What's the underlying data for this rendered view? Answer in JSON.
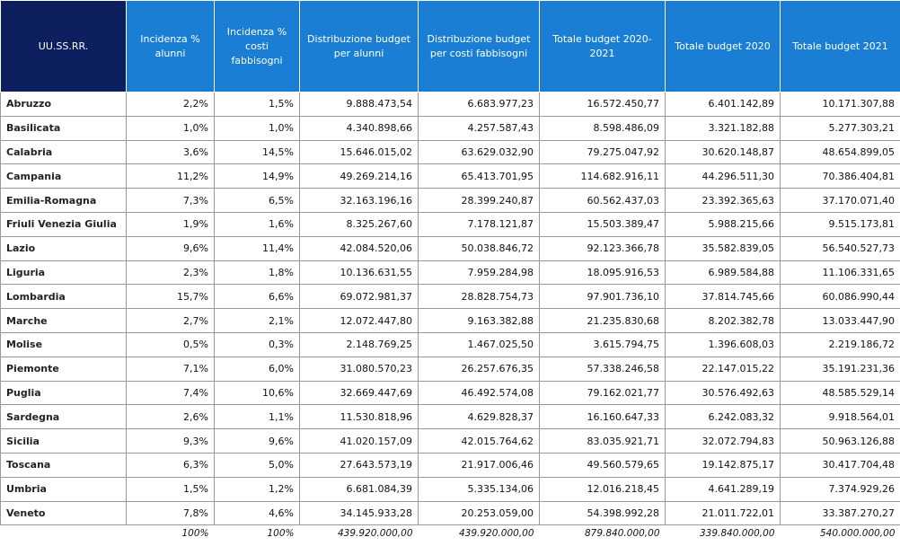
{
  "table": {
    "header": [
      "UU.SS.RR.",
      "Incidenza % alunni",
      "Incidenza % costi fabbisogni",
      "Distribuzione budget per alunni",
      "Distribuzione budget per costi fabbisogni",
      "Totale budget 2020-2021",
      "Totale budget 2020",
      "Totale budget 2021"
    ],
    "rows": [
      [
        "Abruzzo",
        "2,2%",
        "1,5%",
        "9.888.473,54",
        "6.683.977,23",
        "16.572.450,77",
        "6.401.142,89",
        "10.171.307,88"
      ],
      [
        "Basilicata",
        "1,0%",
        "1,0%",
        "4.340.898,66",
        "4.257.587,43",
        "8.598.486,09",
        "3.321.182,88",
        "5.277.303,21"
      ],
      [
        "Calabria",
        "3,6%",
        "14,5%",
        "15.646.015,02",
        "63.629.032,90",
        "79.275.047,92",
        "30.620.148,87",
        "48.654.899,05"
      ],
      [
        "Campania",
        "11,2%",
        "14,9%",
        "49.269.214,16",
        "65.413.701,95",
        "114.682.916,11",
        "44.296.511,30",
        "70.386.404,81"
      ],
      [
        "Emilia-Romagna",
        "7,3%",
        "6,5%",
        "32.163.196,16",
        "28.399.240,87",
        "60.562.437,03",
        "23.392.365,63",
        "37.170.071,40"
      ],
      [
        "Friuli Venezia Giulia",
        "1,9%",
        "1,6%",
        "8.325.267,60",
        "7.178.121,87",
        "15.503.389,47",
        "5.988.215,66",
        "9.515.173,81"
      ],
      [
        "Lazio",
        "9,6%",
        "11,4%",
        "42.084.520,06",
        "50.038.846,72",
        "92.123.366,78",
        "35.582.839,05",
        "56.540.527,73"
      ],
      [
        "Liguria",
        "2,3%",
        "1,8%",
        "10.136.631,55",
        "7.959.284,98",
        "18.095.916,53",
        "6.989.584,88",
        "11.106.331,65"
      ],
      [
        "Lombardia",
        "15,7%",
        "6,6%",
        "69.072.981,37",
        "28.828.754,73",
        "97.901.736,10",
        "37.814.745,66",
        "60.086.990,44"
      ],
      [
        "Marche",
        "2,7%",
        "2,1%",
        "12.072.447,80",
        "9.163.382,88",
        "21.235.830,68",
        "8.202.382,78",
        "13.033.447,90"
      ],
      [
        "Molise",
        "0,5%",
        "0,3%",
        "2.148.769,25",
        "1.467.025,50",
        "3.615.794,75",
        "1.396.608,03",
        "2.219.186,72"
      ],
      [
        "Piemonte",
        "7,1%",
        "6,0%",
        "31.080.570,23",
        "26.257.676,35",
        "57.338.246,58",
        "22.147.015,22",
        "35.191.231,36"
      ],
      [
        "Puglia",
        "7,4%",
        "10,6%",
        "32.669.447,69",
        "46.492.574,08",
        "79.162.021,77",
        "30.576.492,63",
        "48.585.529,14"
      ],
      [
        "Sardegna",
        "2,6%",
        "1,1%",
        "11.530.818,96",
        "4.629.828,37",
        "16.160.647,33",
        "6.242.083,32",
        "9.918.564,01"
      ],
      [
        "Sicilia",
        "9,3%",
        "9,6%",
        "41.020.157,09",
        "42.015.764,62",
        "83.035.921,71",
        "32.072.794,83",
        "50.963.126,88"
      ],
      [
        "Toscana",
        "6,3%",
        "5,0%",
        "27.643.573,19",
        "21.917.006,46",
        "49.560.579,65",
        "19.142.875,17",
        "30.417.704,48"
      ],
      [
        "Umbria",
        "1,5%",
        "1,2%",
        "6.681.084,39",
        "5.335.134,06",
        "12.016.218,45",
        "4.641.289,19",
        "7.374.929,26"
      ],
      [
        "Veneto",
        "7,8%",
        "4,6%",
        "34.145.933,28",
        "20.253.059,00",
        "54.398.992,28",
        "21.011.722,01",
        "33.387.270,27"
      ]
    ],
    "totals": [
      "100%",
      "100%",
      "439.920.000,00",
      "439.920.000,00",
      "879.840.000,00",
      "339.840.000,00",
      "540.000.000,00"
    ]
  }
}
